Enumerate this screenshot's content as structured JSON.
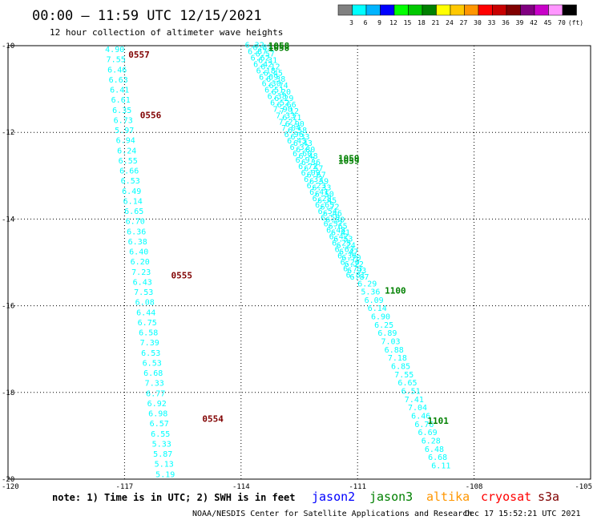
{
  "header": {
    "title": "00:00 – 11:59 UTC 12/15/2021",
    "subtitle": "12 hour collection of altimeter wave heights"
  },
  "color_scale": {
    "labels": [
      "3",
      "6",
      "9",
      "12",
      "15",
      "18",
      "21",
      "24",
      "27",
      "30",
      "33",
      "36",
      "39",
      "42",
      "45",
      "70",
      "(ft)"
    ],
    "colors": [
      "#808080",
      "#00ffff",
      "#00b4ff",
      "#0000ff",
      "#00ff00",
      "#00c800",
      "#008000",
      "#ffff00",
      "#ffc800",
      "#ff9600",
      "#ff0000",
      "#c80000",
      "#800000",
      "#800080",
      "#c800c8",
      "#ff96ff",
      "#000000"
    ]
  },
  "footer": {
    "note": "note: 1) Time is in UTC; 2) SWH is in feet",
    "missions": [
      {
        "name": "jason2",
        "color": "#0000ff"
      },
      {
        "name": "jason3",
        "color": "#008000"
      },
      {
        "name": "altika",
        "color": "#ff9600"
      },
      {
        "name": "cryosat",
        "color": "#ff0000"
      },
      {
        "name": "s3a",
        "color": "#800000"
      }
    ],
    "credit": "NOAA/NESDIS Center for Satellite Applications and Research",
    "timestamp": "Dec 17 15:52:21 UTC 2021"
  },
  "chart_data": {
    "type": "scatter",
    "xlim": [
      -120,
      -105
    ],
    "ylim": [
      -20,
      -10
    ],
    "x_ticks": [
      "-120",
      "-117",
      "-114",
      "-111",
      "-108",
      "-105"
    ],
    "y_ticks": [
      "-10",
      "-12",
      "-14",
      "-16",
      "-18",
      "-20"
    ],
    "grid": true,
    "point_color": "#00ffff",
    "track_a": {
      "values": [
        "4.90",
        "7.55",
        "6.46",
        "6.63",
        "6.41",
        "6.61",
        "6.35",
        "6.73",
        "5.97",
        "6.94",
        "6.24",
        "6.55",
        "6.66",
        "6.53",
        "6.49",
        "6.14",
        "6.65",
        "6.70",
        "6.36",
        "6.38",
        "6.40",
        "6.20",
        "7.23",
        "6.43",
        "7.53",
        "6.08",
        "6.44",
        "6.75",
        "6.58",
        "7.39",
        "6.53",
        "6.53",
        "6.68",
        "7.33",
        "6.77",
        "6.92",
        "6.98",
        "6.57",
        "6.55",
        "5.33",
        "5.87",
        "5.13",
        "5.19"
      ],
      "start": [
        -117.5,
        -10.15
      ],
      "end": [
        -116.2,
        -19.95
      ]
    },
    "track_b_left": {
      "values": [
        "6.32",
        "6.87",
        "6.62",
        "6.42",
        "6.18",
        "6.09",
        "6.30",
        "6.51",
        "6.38",
        "6.52",
        "7.90",
        "7.33",
        "7.21",
        "7.04",
        "6.96",
        "6.43",
        "6.32",
        "6.60",
        "6.97",
        "6.72",
        "6.09",
        "6.33",
        "6.23",
        "6.41",
        "6.28",
        "6.65",
        "6.54",
        "6.50",
        "6.57",
        "6.48",
        "6.42",
        "6.25",
        "6.63",
        "6.36",
        "6.20",
        "6.73",
        "6.81"
      ],
      "start": [
        -113.9,
        -10.05
      ],
      "end": [
        -111.3,
        -15.35
      ]
    },
    "track_b_right": {
      "values": [
        "6.83",
        "6.57",
        "6.31",
        "6.12",
        "6.45",
        "6.38",
        "6.74",
        "6.20",
        "6.29",
        "6.66",
        "7.12",
        "6.71",
        "6.90",
        "6.58",
        "6.33",
        "6.43",
        "6.80",
        "6.48",
        "6.36",
        "6.57",
        "6.67",
        "6.59",
        "6.33",
        "6.50",
        "6.45",
        "6.72",
        "6.46",
        "6.30",
        "6.65",
        "6.41",
        "6.53",
        "6.24",
        "6.47",
        "6.70",
        "6.22",
        "6.93",
        "6.87"
      ],
      "start": [
        -113.7,
        -10.1
      ],
      "end": [
        -111.2,
        -15.4
      ]
    },
    "track_b_south": {
      "values": [
        "6.29",
        "5.36",
        "6.09",
        "6.14",
        "6.90",
        "6.25",
        "6.89",
        "7.03",
        "6.88",
        "7.18",
        "6.85",
        "7.55",
        "6.65",
        "6.51",
        "7.41",
        "7.04",
        "6.46",
        "6.76",
        "6.69",
        "6.28",
        "6.48",
        "6.68",
        "6.11"
      ],
      "start": [
        -111.0,
        -15.55
      ],
      "end": [
        -109.1,
        -19.75
      ]
    },
    "time_labels": [
      {
        "text": "0557",
        "x": -116.9,
        "y": -10.2,
        "color": "#800000"
      },
      {
        "text": "0556",
        "x": -116.6,
        "y": -11.6,
        "color": "#800000"
      },
      {
        "text": "0555",
        "x": -115.8,
        "y": -15.3,
        "color": "#800000"
      },
      {
        "text": "0554",
        "x": -115.0,
        "y": -18.6,
        "color": "#800000"
      },
      {
        "text": "1058",
        "x": -113.3,
        "y": -10.0,
        "color": "#008000"
      },
      {
        "text": "1058",
        "x": -113.3,
        "y": -10.05,
        "color": "#008000"
      },
      {
        "text": "1059",
        "x": -111.5,
        "y": -12.6,
        "color": "#008000"
      },
      {
        "text": "1059",
        "x": -111.5,
        "y": -12.65,
        "color": "#008000"
      },
      {
        "text": "1100",
        "x": -110.3,
        "y": -15.65,
        "color": "#008000"
      },
      {
        "text": "1101",
        "x": -109.2,
        "y": -18.65,
        "color": "#008000"
      }
    ]
  }
}
